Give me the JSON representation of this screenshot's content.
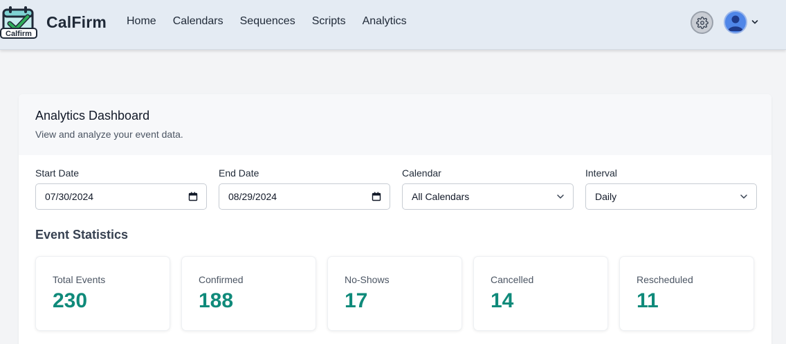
{
  "brand": {
    "name": "CalFirm",
    "logo_text": "Calfirm"
  },
  "nav": {
    "links": [
      {
        "label": "Home"
      },
      {
        "label": "Calendars"
      },
      {
        "label": "Sequences"
      },
      {
        "label": "Scripts"
      },
      {
        "label": "Analytics"
      }
    ]
  },
  "header_icons": {
    "settings": "gear-icon",
    "avatar": "user-icon",
    "menu": "chevron-down-icon"
  },
  "dashboard": {
    "title": "Analytics Dashboard",
    "subtitle": "View and analyze your event data.",
    "filters": {
      "start_date": {
        "label": "Start Date",
        "value": "07/30/2024"
      },
      "end_date": {
        "label": "End Date",
        "value": "08/29/2024"
      },
      "calendar": {
        "label": "Calendar",
        "value": "All Calendars"
      },
      "interval": {
        "label": "Interval",
        "value": "Daily"
      }
    },
    "stats_title": "Event Statistics",
    "stats": [
      {
        "label": "Total Events",
        "value": "230"
      },
      {
        "label": "Confirmed",
        "value": "188"
      },
      {
        "label": "No-Shows",
        "value": "17"
      },
      {
        "label": "Cancelled",
        "value": "14"
      },
      {
        "label": "Rescheduled",
        "value": "11"
      }
    ]
  },
  "colors": {
    "accent_teal": "#0f8a7a",
    "navbar_bg": "#e4ebf3",
    "avatar_blue": "#4f86e8"
  }
}
